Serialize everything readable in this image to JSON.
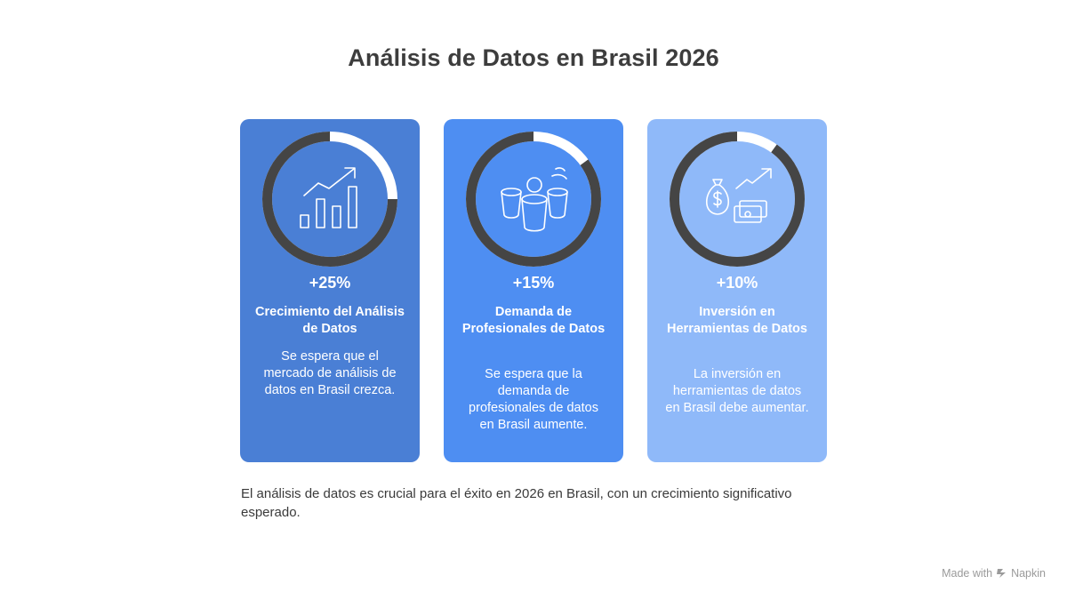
{
  "title": "Análisis de Datos en Brasil 2026",
  "cards": [
    {
      "percent": "+25%",
      "progress": 0.75,
      "heading": "Crecimiento del Análisis de Datos",
      "description": "Se espera que el mercado de análisis de datos en Brasil crezca.",
      "icon": "bar-chart-growth-icon",
      "color": "#4a7fd5"
    },
    {
      "percent": "+15%",
      "progress": 0.85,
      "heading": "Demanda de Profesionales de Datos",
      "description": "Se espera que la demanda de profesionales de datos en Brasil aumente.",
      "icon": "professionals-icon",
      "color": "#4e8ef2"
    },
    {
      "percent": "+10%",
      "progress": 0.9,
      "heading": "Inversión en Herramientas de Datos",
      "description": "La inversión en herramientas de datos en Brasil debe aumentar.",
      "icon": "money-investment-icon",
      "color": "#8fb9f9"
    }
  ],
  "summary": "El análisis de datos es crucial para el éxito en 2026 en Brasil, con un crecimiento significativo esperado.",
  "footer": {
    "made_with": "Made with",
    "brand": "Napkin"
  }
}
